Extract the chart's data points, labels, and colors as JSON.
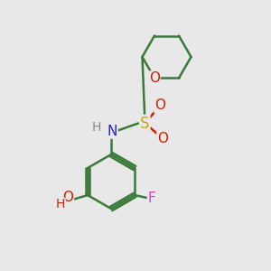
{
  "background_color": "#e8e8e8",
  "bond_color": "#3a7a3a",
  "bond_width": 1.8,
  "atom_labels": {
    "O_ring": {
      "text": "O",
      "color": "#cc2200",
      "fontsize": 11
    },
    "O_sulfonyl1": {
      "text": "O",
      "color": "#cc2200",
      "fontsize": 11
    },
    "O_sulfonyl2": {
      "text": "O",
      "color": "#cc2200",
      "fontsize": 11
    },
    "S": {
      "text": "S",
      "color": "#ccaa00",
      "fontsize": 12
    },
    "N": {
      "text": "N",
      "color": "#2222cc",
      "fontsize": 11
    },
    "H_N": {
      "text": "H",
      "color": "#888888",
      "fontsize": 10
    },
    "F": {
      "text": "F",
      "color": "#cc44cc",
      "fontsize": 11
    },
    "O_OH": {
      "text": "O",
      "color": "#cc2200",
      "fontsize": 11
    },
    "H_OH": {
      "text": "H",
      "color": "#cc2200",
      "fontsize": 10
    }
  }
}
